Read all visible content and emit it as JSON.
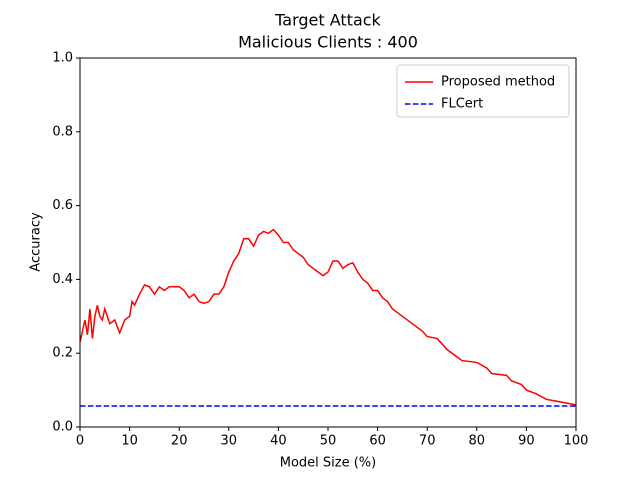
{
  "chart_data": {
    "type": "line",
    "title": "Target Attack",
    "subtitle": "Malicious Clients : 400",
    "xlabel": "Model Size (%)",
    "ylabel": "Accuracy",
    "xlim": [
      0,
      100
    ],
    "ylim": [
      0,
      1
    ],
    "xticks": [
      0,
      10,
      20,
      30,
      40,
      50,
      60,
      70,
      80,
      90,
      100
    ],
    "yticks": [
      {
        "value": 0,
        "label": "0.0"
      },
      {
        "value": 0.2,
        "label": "0.2"
      },
      {
        "value": 0.4,
        "label": "0.4"
      },
      {
        "value": 0.6,
        "label": "0.6"
      },
      {
        "value": 0.8,
        "label": "0.8"
      },
      {
        "value": 1,
        "label": "1.0"
      }
    ],
    "legend": "upper right",
    "series": [
      {
        "name": "Proposed method",
        "color": "#ff0000",
        "dash": "solid",
        "x": [
          0,
          1,
          1.5,
          2,
          2.5,
          3,
          3.5,
          4,
          4.5,
          5,
          6,
          7,
          8,
          9,
          10,
          10.5,
          11,
          12,
          13,
          14,
          15,
          16,
          17,
          18,
          20,
          21,
          22,
          23,
          24,
          25,
          26,
          27,
          28,
          29,
          30,
          31,
          32,
          33,
          34,
          35,
          36,
          37,
          38,
          39,
          40,
          41,
          42,
          43,
          44,
          45,
          46,
          47,
          48,
          49,
          50,
          51,
          52,
          53,
          54,
          55,
          56,
          57,
          58,
          59,
          60,
          61,
          62,
          63,
          65,
          67,
          69,
          70,
          72,
          74,
          76,
          77,
          80,
          82,
          83,
          86,
          87,
          89,
          90,
          92,
          94,
          96,
          98,
          100
        ],
        "values": [
          0.23,
          0.29,
          0.25,
          0.32,
          0.24,
          0.3,
          0.33,
          0.3,
          0.29,
          0.32,
          0.28,
          0.29,
          0.255,
          0.29,
          0.3,
          0.34,
          0.33,
          0.36,
          0.385,
          0.38,
          0.36,
          0.38,
          0.37,
          0.38,
          0.38,
          0.37,
          0.35,
          0.36,
          0.34,
          0.335,
          0.34,
          0.36,
          0.36,
          0.38,
          0.42,
          0.45,
          0.47,
          0.51,
          0.51,
          0.49,
          0.52,
          0.53,
          0.525,
          0.535,
          0.52,
          0.5,
          0.5,
          0.48,
          0.47,
          0.46,
          0.44,
          0.43,
          0.42,
          0.41,
          0.42,
          0.45,
          0.45,
          0.43,
          0.44,
          0.445,
          0.42,
          0.4,
          0.39,
          0.37,
          0.37,
          0.35,
          0.34,
          0.32,
          0.3,
          0.28,
          0.26,
          0.245,
          0.24,
          0.21,
          0.19,
          0.18,
          0.175,
          0.16,
          0.145,
          0.14,
          0.125,
          0.115,
          0.1,
          0.09,
          0.075,
          0.07,
          0.065,
          0.06
        ]
      },
      {
        "name": "FLCert",
        "color": "#0000ff",
        "dash": "dashed",
        "x": [
          0,
          100
        ],
        "values": [
          0.057,
          0.057
        ]
      }
    ]
  }
}
